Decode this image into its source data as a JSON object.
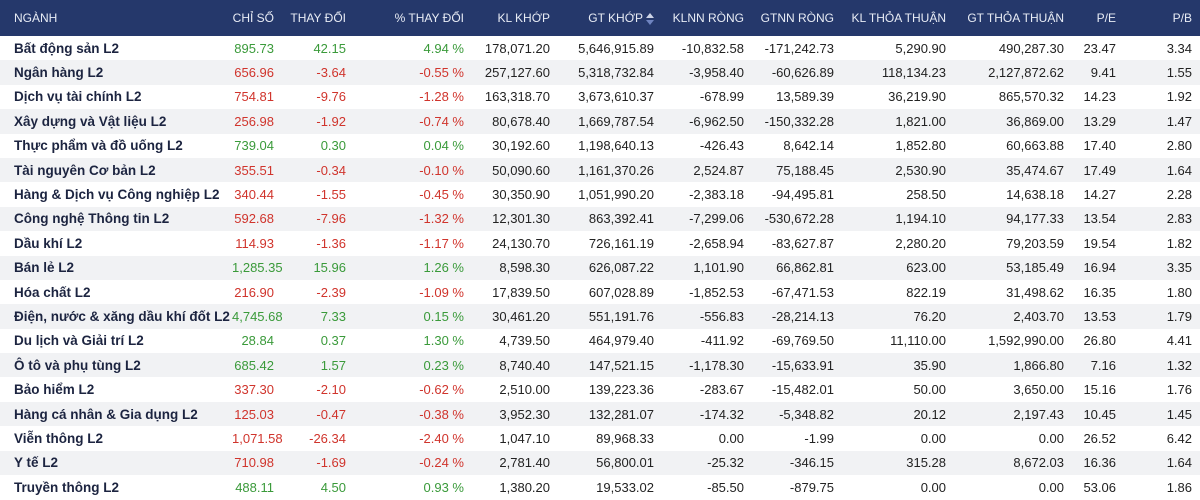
{
  "table": {
    "header": [
      "NGÀNH",
      "CHỈ SỐ",
      "THAY ĐỔI",
      "% THAY ĐỔI",
      "KL KHỚP",
      "GT KHỚP",
      "KLNN RÒNG",
      "GTNN RÒNG",
      "KL THỎA THUẬN",
      "GT THỎA THUẬN",
      "P/E",
      "P/B"
    ],
    "rows": [
      [
        "Bất động sản L2",
        "895.73",
        "42.15",
        "4.94 %",
        "178,071.20",
        "5,646,915.89",
        "-10,832.58",
        "-171,242.73",
        "5,290.90",
        "490,287.30",
        "23.47",
        "3.34"
      ],
      [
        "Ngân hàng L2",
        "656.96",
        "-3.64",
        "-0.55 %",
        "257,127.60",
        "5,318,732.84",
        "-3,958.40",
        "-60,626.89",
        "118,134.23",
        "2,127,872.62",
        "9.41",
        "1.55"
      ],
      [
        "Dịch vụ tài chính L2",
        "754.81",
        "-9.76",
        "-1.28 %",
        "163,318.70",
        "3,673,610.37",
        "-678.99",
        "13,589.39",
        "36,219.90",
        "865,570.32",
        "14.23",
        "1.92"
      ],
      [
        "Xây dựng và Vật liệu L2",
        "256.98",
        "-1.92",
        "-0.74 %",
        "80,678.40",
        "1,669,787.54",
        "-6,962.50",
        "-150,332.28",
        "1,821.00",
        "36,869.00",
        "13.29",
        "1.47"
      ],
      [
        "Thực phẩm và đồ uống L2",
        "739.04",
        "0.30",
        "0.04 %",
        "30,192.60",
        "1,198,640.13",
        "-426.43",
        "8,642.14",
        "1,852.80",
        "60,663.88",
        "17.40",
        "2.80"
      ],
      [
        "Tài nguyên Cơ bản L2",
        "355.51",
        "-0.34",
        "-0.10 %",
        "50,090.60",
        "1,161,370.26",
        "2,524.87",
        "75,188.45",
        "2,530.90",
        "35,474.67",
        "17.49",
        "1.64"
      ],
      [
        "Hàng & Dịch vụ Công nghiệp L2",
        "340.44",
        "-1.55",
        "-0.45 %",
        "30,350.90",
        "1,051,990.20",
        "-2,383.18",
        "-94,495.81",
        "258.50",
        "14,638.18",
        "14.27",
        "2.28"
      ],
      [
        "Công nghệ Thông tin L2",
        "592.68",
        "-7.96",
        "-1.32 %",
        "12,301.30",
        "863,392.41",
        "-7,299.06",
        "-530,672.28",
        "1,194.10",
        "94,177.33",
        "13.54",
        "2.83"
      ],
      [
        "Dầu khí L2",
        "114.93",
        "-1.36",
        "-1.17 %",
        "24,130.70",
        "726,161.19",
        "-2,658.94",
        "-83,627.87",
        "2,280.20",
        "79,203.59",
        "19.54",
        "1.82"
      ],
      [
        "Bán lẻ L2",
        "1,285.35",
        "15.96",
        "1.26 %",
        "8,598.30",
        "626,087.22",
        "1,101.90",
        "66,862.81",
        "623.00",
        "53,185.49",
        "16.94",
        "3.35"
      ],
      [
        "Hóa chất L2",
        "216.90",
        "-2.39",
        "-1.09 %",
        "17,839.50",
        "607,028.89",
        "-1,852.53",
        "-67,471.53",
        "822.19",
        "31,498.62",
        "16.35",
        "1.80"
      ],
      [
        "Điện, nước & xăng dầu khí đốt L2",
        "4,745.68",
        "7.33",
        "0.15 %",
        "30,461.20",
        "551,191.76",
        "-556.83",
        "-28,214.13",
        "76.20",
        "2,403.70",
        "13.53",
        "1.79"
      ],
      [
        "Du lịch và Giải trí L2",
        "28.84",
        "0.37",
        "1.30 %",
        "4,739.50",
        "464,979.40",
        "-411.92",
        "-69,769.50",
        "11,110.00",
        "1,592,990.00",
        "26.80",
        "4.41"
      ],
      [
        "Ô tô và phụ tùng L2",
        "685.42",
        "1.57",
        "0.23 %",
        "8,740.40",
        "147,521.15",
        "-1,178.30",
        "-15,633.91",
        "35.90",
        "1,866.80",
        "7.16",
        "1.32"
      ],
      [
        "Bảo hiểm L2",
        "337.30",
        "-2.10",
        "-0.62 %",
        "2,510.00",
        "139,223.36",
        "-283.67",
        "-15,482.01",
        "50.00",
        "3,650.00",
        "15.16",
        "1.76"
      ],
      [
        "Hàng cá nhân & Gia dụng L2",
        "125.03",
        "-0.47",
        "-0.38 %",
        "3,952.30",
        "132,281.07",
        "-174.32",
        "-5,348.82",
        "20.12",
        "2,197.43",
        "10.45",
        "1.45"
      ],
      [
        "Viễn thông L2",
        "1,071.58",
        "-26.34",
        "-2.40 %",
        "1,047.10",
        "89,968.33",
        "0.00",
        "-1.99",
        "0.00",
        "0.00",
        "26.52",
        "6.42"
      ],
      [
        "Y tế L2",
        "710.98",
        "-1.69",
        "-0.24 %",
        "2,781.40",
        "56,800.01",
        "-25.32",
        "-346.15",
        "315.28",
        "8,672.03",
        "16.36",
        "1.64"
      ],
      [
        "Truyền thông L2",
        "488.11",
        "4.50",
        "0.93 %",
        "1,380.20",
        "19,533.02",
        "-85.50",
        "-879.75",
        "0.00",
        "0.00",
        "53.06",
        "1.86"
      ]
    ]
  }
}
